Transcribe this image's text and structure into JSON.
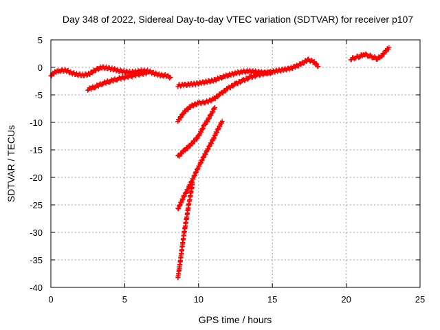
{
  "chart_data": {
    "type": "scatter",
    "title": "Day 348 of 2022, Sidereal Day-to-day VTEC variation (SDTVAR) for receiver p107",
    "xlabel": "GPS time / hours",
    "ylabel": "SDTVAR / TECUs",
    "xlim": [
      0,
      25
    ],
    "ylim": [
      -40,
      5
    ],
    "xticks": [
      0,
      5,
      10,
      15,
      20,
      25
    ],
    "yticks": [
      5,
      0,
      -5,
      -10,
      -15,
      -20,
      -25,
      -30,
      -35,
      -40
    ],
    "grid": true,
    "marker": "plus",
    "color": "#ff0000",
    "series": [
      {
        "x": [
          0.0,
          0.3,
          0.6,
          1.0,
          1.4,
          1.8,
          2.2,
          2.6,
          3.0,
          3.4,
          3.8,
          4.2,
          4.6,
          5.0,
          5.4,
          5.8,
          6.2,
          6.6,
          7.0,
          7.4,
          7.8,
          8.1
        ],
        "y": [
          -1.5,
          -0.8,
          -0.6,
          -0.5,
          -1.0,
          -1.3,
          -1.4,
          -1.2,
          -0.5,
          0.0,
          -0.1,
          -0.3,
          -0.6,
          -0.8,
          -0.9,
          -0.8,
          -0.6,
          -0.7,
          -1.1,
          -1.4,
          -1.5,
          -1.8
        ]
      },
      {
        "x": [
          2.5,
          3.0,
          3.5,
          4.0,
          4.5,
          5.0,
          5.5,
          6.0,
          6.5
        ],
        "y": [
          -4.0,
          -3.5,
          -2.9,
          -2.5,
          -2.1,
          -1.8,
          -1.5,
          -1.2,
          -1.0
        ]
      },
      {
        "x": [
          8.6,
          9.0,
          9.4,
          9.8,
          10.2,
          10.6,
          11.0,
          11.4,
          11.8,
          12.2,
          12.6,
          13.0,
          13.4,
          13.8,
          14.2,
          14.6,
          15.0,
          15.4,
          15.8,
          16.2,
          16.6,
          17.0,
          17.4,
          17.8,
          18.1
        ],
        "y": [
          -3.3,
          -3.2,
          -3.1,
          -3.0,
          -2.8,
          -2.6,
          -2.4,
          -2.0,
          -1.6,
          -1.3,
          -1.0,
          -0.8,
          -0.7,
          -0.8,
          -0.9,
          -1.0,
          -0.8,
          -0.6,
          -0.4,
          -0.2,
          0.2,
          0.7,
          1.4,
          1.0,
          0.2
        ]
      },
      {
        "x": [
          8.6,
          9.0,
          9.5,
          10.0,
          10.5,
          11.0,
          11.5,
          12.0,
          12.5,
          13.0,
          13.5,
          14.0,
          14.5,
          15.0
        ],
        "y": [
          -9.8,
          -8.2,
          -7.0,
          -6.5,
          -6.3,
          -5.8,
          -4.8,
          -3.8,
          -3.0,
          -2.4,
          -1.8,
          -1.4,
          -1.1,
          -0.9
        ]
      },
      {
        "x": [
          8.6,
          9.0,
          9.5,
          10.0,
          10.4,
          10.8,
          11.1
        ],
        "y": [
          -16.2,
          -15.2,
          -14.0,
          -12.5,
          -10.5,
          -8.8,
          -7.3
        ]
      },
      {
        "x": [
          8.6,
          9.0,
          9.4,
          9.8,
          10.2,
          10.6,
          11.0,
          11.3,
          11.6
        ],
        "y": [
          -25.8,
          -23.5,
          -21.5,
          -19.2,
          -17.0,
          -15.0,
          -13.0,
          -11.3,
          -9.8
        ]
      },
      {
        "x": [
          8.6,
          8.7,
          8.8,
          8.9,
          9.0,
          9.1,
          9.2,
          9.3,
          9.4,
          9.5,
          9.6
        ],
        "y": [
          -38.2,
          -36.5,
          -34.5,
          -32.5,
          -30.5,
          -28.8,
          -27.2,
          -25.5,
          -24.0,
          -22.5,
          -21.0
        ]
      },
      {
        "x": [
          20.3,
          20.6,
          20.9,
          21.2,
          21.5,
          21.8,
          22.1,
          22.4,
          22.7,
          22.9
        ],
        "y": [
          1.5,
          1.8,
          2.0,
          2.4,
          2.2,
          1.9,
          1.6,
          2.1,
          3.0,
          3.6
        ]
      }
    ]
  }
}
